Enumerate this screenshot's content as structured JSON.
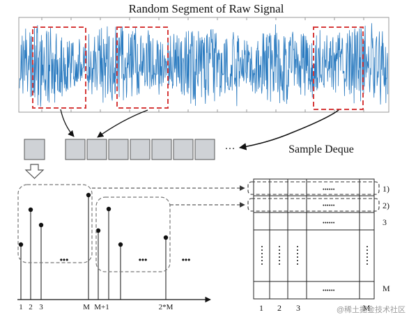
{
  "title": "Random Segment of Raw Signal",
  "deque_label": "Sample Deque",
  "deque_ellipsis": "···",
  "dots_ellipsis": "•••",
  "matrix_dots": "••••••",
  "x_ticks": [
    "1",
    "2",
    "3",
    "M",
    "M+1",
    "2*M"
  ],
  "matrix_row_labels": [
    "1)",
    "2)",
    "3",
    "M"
  ],
  "matrix_col_labels": [
    "1",
    "2",
    "3",
    "M"
  ],
  "watermark": "@稀土掘金技术社区",
  "colors": {
    "signal": "#2b7bc0",
    "dashed_red": "#d63a3a",
    "box_fill": "#cfd2d6",
    "box_stroke": "#555555",
    "ink": "#222222",
    "gray_dash": "#777777"
  }
}
